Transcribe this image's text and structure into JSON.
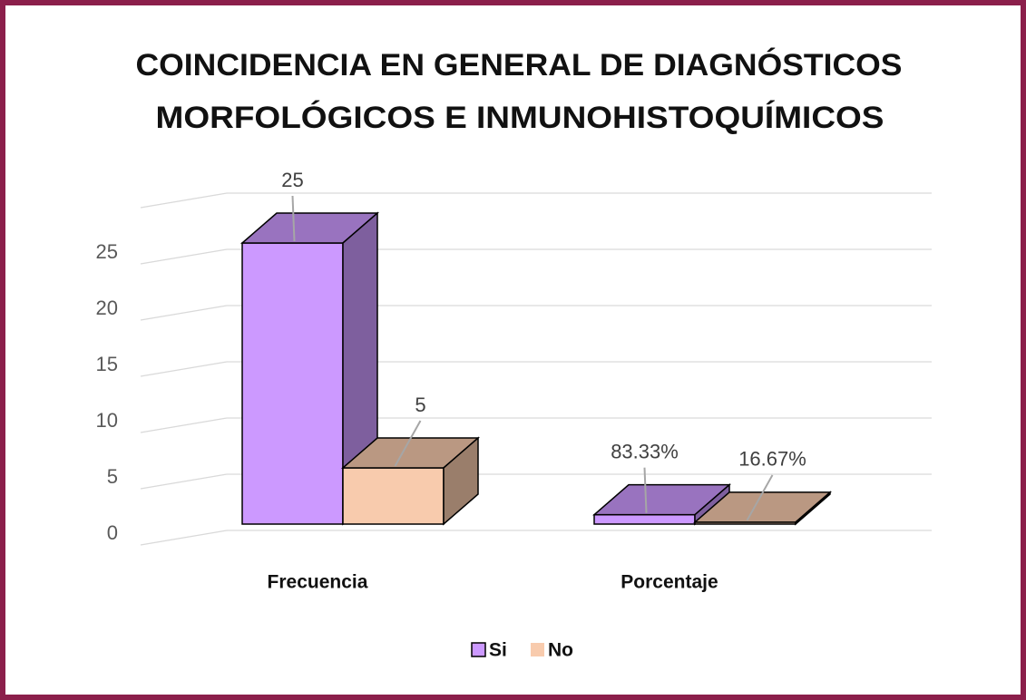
{
  "chart_data": {
    "type": "bar3d",
    "title": [
      "COINCIDENCIA EN GENERAL DE DIAGNÓSTICOS",
      "MORFOLÓGICOS E INMUNOHISTOQUÍMICOS"
    ],
    "categories": [
      "Frecuencia",
      "Porcentaje"
    ],
    "series": [
      {
        "name": "Si",
        "color": "#cc99ff",
        "values": [
          25,
          0.8333
        ],
        "value_labels": [
          "25",
          "83.33%"
        ]
      },
      {
        "name": "No",
        "color": "#f8cbad",
        "values": [
          5,
          0.1667
        ],
        "value_labels": [
          "5",
          "16.67%"
        ]
      }
    ],
    "ylim": [
      0,
      30
    ],
    "yticks": [
      0,
      5,
      10,
      15,
      20,
      25
    ],
    "grid": true,
    "legend": "bottom"
  }
}
